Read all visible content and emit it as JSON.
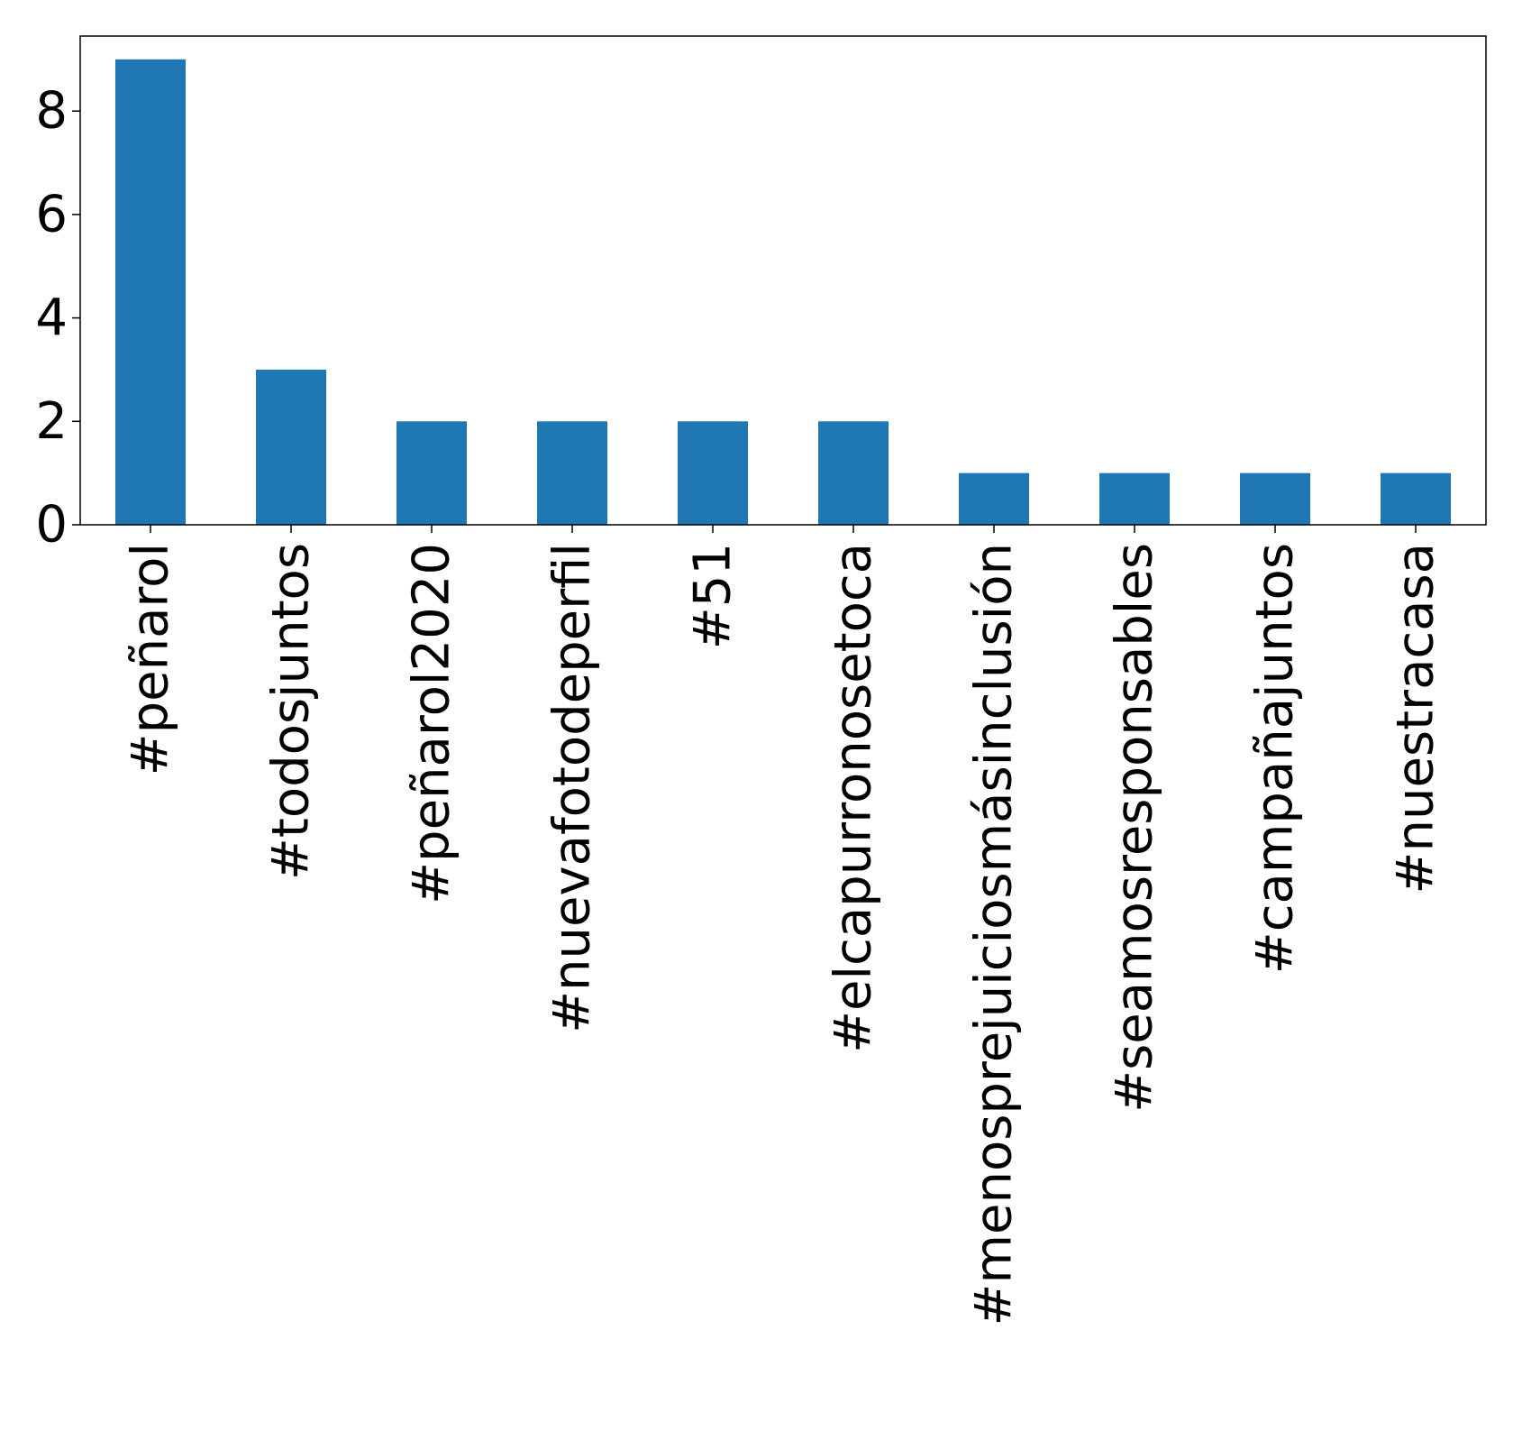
{
  "chart_data": {
    "type": "bar",
    "categories": [
      "#peñarol",
      "#todosjuntos",
      "#peñarol2020",
      "#nuevafotodeperfil",
      "#51",
      "#elcapurronosetoca",
      "#menosprejuiciosmásinclusión",
      "#seamosresponsables",
      "#campañajuntos",
      "#nuestracasa"
    ],
    "values": [
      9,
      3,
      2,
      2,
      2,
      2,
      1,
      1,
      1,
      1
    ],
    "yticks": [
      0,
      2,
      4,
      6,
      8
    ],
    "ylim": [
      0,
      9.45
    ],
    "grid": false,
    "bar_color": "#1f77b4",
    "title": "",
    "xlabel": "",
    "ylabel": ""
  }
}
